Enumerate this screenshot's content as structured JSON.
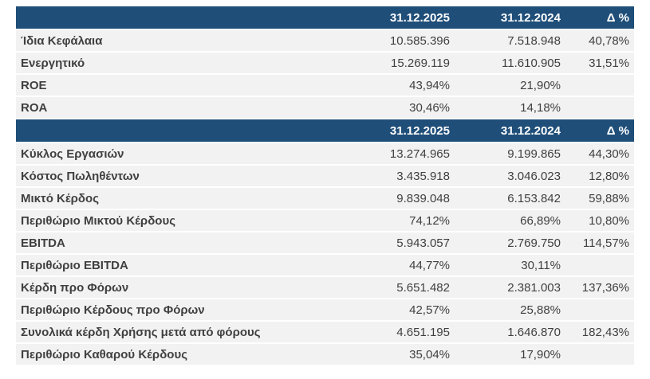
{
  "tables": [
    {
      "header": {
        "label": "",
        "col1": "31.12.2025",
        "col2": "31.12.2024",
        "col3": "Δ %"
      },
      "rows": [
        {
          "label": "Ίδια Κεφάλαια",
          "col1": "10.585.396",
          "col2": "7.518.948",
          "col3": "40,78%"
        },
        {
          "label": "Ενεργητικό",
          "col1": "15.269.119",
          "col2": "11.610.905",
          "col3": "31,51%"
        },
        {
          "label": "ROE",
          "col1": "43,94%",
          "col2": "21,90%",
          "col3": ""
        },
        {
          "label": "ROA",
          "col1": "30,46%",
          "col2": "14,18%",
          "col3": ""
        }
      ]
    },
    {
      "header": {
        "label": "",
        "col1": "31.12.2025",
        "col2": "31.12.2024",
        "col3": "Δ %"
      },
      "rows": [
        {
          "label": "Κύκλος Εργασιών",
          "col1": "13.274.965",
          "col2": "9.199.865",
          "col3": "44,30%"
        },
        {
          "label": "Κόστος Πωληθέντων",
          "col1": "3.435.918",
          "col2": "3.046.023",
          "col3": "12,80%"
        },
        {
          "label": "Μικτό Κέρδος",
          "col1": "9.839.048",
          "col2": "6.153.842",
          "col3": "59,88%"
        },
        {
          "label": "Περιθώριο Μικτού Κέρδους",
          "col1": "74,12%",
          "col2": "66,89%",
          "col3": "10,80%"
        },
        {
          "label": "EBITDA",
          "col1": "5.943.057",
          "col2": "2.769.750",
          "col3": "114,57%"
        },
        {
          "label": "Περιθώριο EBITDA",
          "col1": "44,77%",
          "col2": "30,11%",
          "col3": ""
        },
        {
          "label": "Κέρδη προ Φόρων",
          "col1": "5.651.482",
          "col2": "2.381.003",
          "col3": "137,36%"
        },
        {
          "label": "Περιθώριο Κέρδους προ Φόρων",
          "col1": "42,57%",
          "col2": "25,88%",
          "col3": ""
        },
        {
          "label": "Συνολικά κέρδη Χρήσης μετά από φόρους",
          "col1": "4.651.195",
          "col2": "1.646.870",
          "col3": "182,43%"
        },
        {
          "label": "Περιθώριο Καθαρού Κέρδους",
          "col1": "35,04%",
          "col2": "17,90%",
          "col3": ""
        }
      ]
    }
  ],
  "colors": {
    "header_bg": "#1f4e79",
    "row_bg": "#f2f2f2",
    "text": "#404040"
  }
}
